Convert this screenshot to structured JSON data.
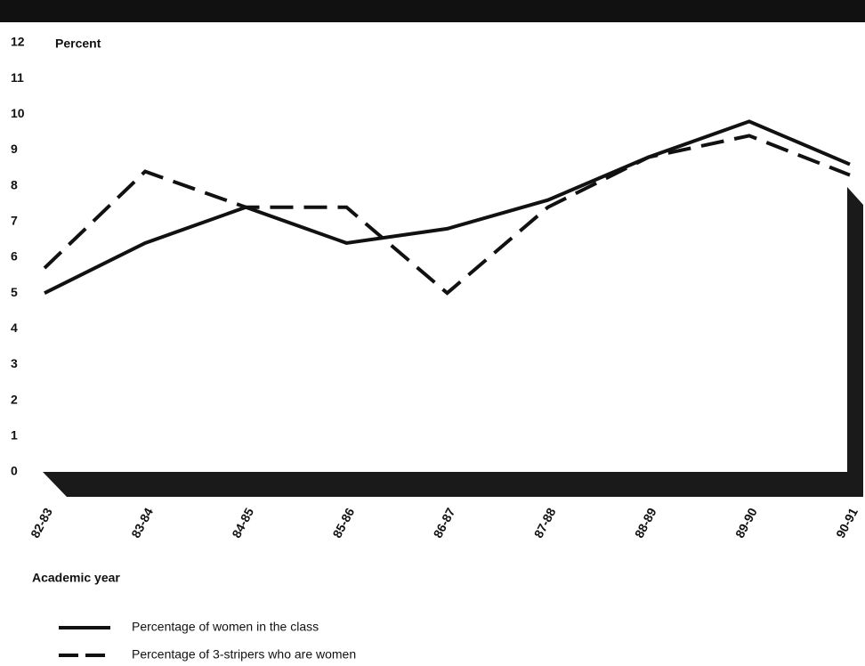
{
  "chart_data": {
    "type": "line",
    "y_label": "Percent",
    "x_label": "Academic year",
    "categories": [
      "82-83",
      "83-84",
      "84-85",
      "85-86",
      "86-87",
      "87-88",
      "88-89",
      "89-90",
      "90-91"
    ],
    "series": [
      {
        "name": "Percentage of women in the class",
        "color": "#111111",
        "style": "solid",
        "values": [
          5.0,
          6.4,
          7.4,
          6.4,
          6.8,
          7.6,
          8.8,
          9.8,
          8.6
        ]
      },
      {
        "name": "Percentage of 3-stripers who are women",
        "color": "#111111",
        "style": "dashed",
        "values": [
          5.7,
          8.4,
          7.4,
          7.4,
          5.0,
          7.4,
          8.8,
          9.4,
          8.3
        ]
      }
    ],
    "ylim": [
      0,
      12
    ],
    "yticks": [
      0,
      1,
      2,
      3,
      4,
      5,
      6,
      7,
      8,
      9,
      10,
      11,
      12
    ]
  }
}
